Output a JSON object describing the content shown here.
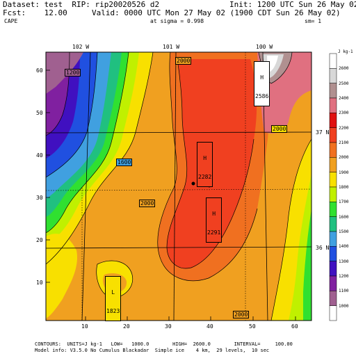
{
  "header": {
    "dataset_line": "Dataset: test  RIP: rip20020526 d2",
    "init_line": "Init: 1200 UTC Sun 26 May 02",
    "fcst_line": "Fcst:    12.00",
    "valid_line": "Valid: 0000 UTC Mon 27 May 02 (1900 CDT Sun 26 May 02)",
    "field": "CAPE",
    "sigma_line": "at sigma = 0.998",
    "sm_line": "sm= 1"
  },
  "map": {
    "top_lon_labels": [
      "102 W",
      "101 W",
      "100 W"
    ],
    "right_lat_labels": [
      "37 N",
      "36 N"
    ],
    "y_ticks": [
      "60",
      "50",
      "40",
      "30",
      "20",
      "10"
    ],
    "x_ticks": [
      "10",
      "20",
      "30",
      "40",
      "50",
      "60"
    ],
    "contour_labels": [
      "1200",
      "2000",
      "1600",
      "2000",
      "2000",
      "2000"
    ],
    "highs": [
      {
        "label": "H",
        "value": "2586"
      },
      {
        "label": "H",
        "value": "2282"
      },
      {
        "label": "H",
        "value": "2291"
      }
    ],
    "lows": [
      {
        "label": "L",
        "value": "1823"
      }
    ]
  },
  "colorbar": {
    "units": "J kg-1",
    "levels": [
      "2600",
      "2500",
      "2400",
      "2300",
      "2200",
      "2100",
      "2000",
      "1900",
      "1800",
      "1700",
      "1600",
      "1500",
      "1400",
      "1300",
      "1200",
      "1100",
      "1000"
    ],
    "colors": [
      "#ffffff",
      "#d8d8d8",
      "#b09090",
      "#e07080",
      "#e01010",
      "#f04020",
      "#f07020",
      "#f0a020",
      "#f8e000",
      "#c0f000",
      "#30e030",
      "#20c080",
      "#40a0e0",
      "#2050e0",
      "#4010c0",
      "#8020a0",
      "#a06090",
      "#ffffff"
    ]
  },
  "footer": {
    "contours_line": "CONTOURS:  UNITS=J kg-1   LOW=   1000.0        HIGH=  2600.0        INTERVAL=     100.00",
    "model_line": "Model info: V3.5.0 No Cumulus Blackadar  Simple ice    4 km,  29 levels,  10 sec"
  }
}
